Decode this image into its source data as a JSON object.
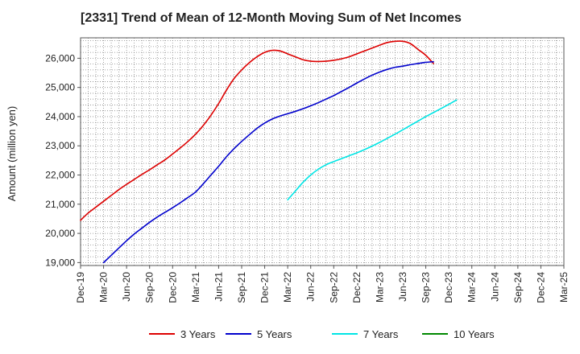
{
  "chart_data": {
    "type": "line",
    "title": "[2331]  Trend of Mean of 12-Month Moving Sum of Net Incomes",
    "xlabel": "",
    "ylabel": "Amount (million yen)",
    "x_ticks": [
      "Dec-19",
      "Mar-20",
      "Jun-20",
      "Sep-20",
      "Dec-20",
      "Mar-21",
      "Jun-21",
      "Sep-21",
      "Dec-21",
      "Mar-22",
      "Jun-22",
      "Sep-22",
      "Dec-22",
      "Mar-23",
      "Jun-23",
      "Sep-23",
      "Dec-23",
      "Mar-24",
      "Jun-24",
      "Sep-24",
      "Dec-24",
      "Mar-25"
    ],
    "y_ticks": [
      19000,
      20000,
      21000,
      22000,
      23000,
      24000,
      25000,
      26000
    ],
    "y_tick_labels": [
      "19,000",
      "20,000",
      "21,000",
      "22,000",
      "23,000",
      "24,000",
      "25,000",
      "26,000"
    ],
    "ylim": [
      18900,
      26700
    ],
    "grid": true,
    "legend_position": "bottom",
    "series": [
      {
        "name": "3 Years",
        "color": "#dd0000",
        "start": "Dec-19",
        "values": [
          20450,
          20700,
          20900,
          21100,
          21300,
          21500,
          21680,
          21850,
          22020,
          22180,
          22350,
          22520,
          22720,
          22930,
          23150,
          23400,
          23700,
          24050,
          24450,
          24900,
          25300,
          25600,
          25850,
          26050,
          26200,
          26270,
          26250,
          26150,
          26050,
          25950,
          25900,
          25890,
          25900,
          25930,
          25980,
          26050,
          26150,
          26250,
          26350,
          26450,
          26540,
          26580,
          26580,
          26500,
          26300,
          26100,
          25820
        ]
      },
      {
        "name": "5 Years",
        "color": "#0000cc",
        "start": "Mar-20",
        "values": [
          19000,
          19250,
          19500,
          19750,
          19980,
          20180,
          20380,
          20560,
          20720,
          20880,
          21050,
          21230,
          21420,
          21700,
          22000,
          22300,
          22620,
          22900,
          23150,
          23380,
          23600,
          23780,
          23920,
          24020,
          24100,
          24180,
          24270,
          24370,
          24480,
          24600,
          24720,
          24860,
          25000,
          25150,
          25290,
          25420,
          25530,
          25620,
          25690,
          25730,
          25780,
          25820,
          25860,
          25880
        ]
      },
      {
        "name": "7 Years",
        "color": "#00e5e5",
        "start": "Mar-22",
        "values": [
          21150,
          21450,
          21750,
          22000,
          22200,
          22350,
          22460,
          22560,
          22660,
          22760,
          22870,
          22990,
          23120,
          23260,
          23400,
          23550,
          23700,
          23850,
          24000,
          24140,
          24280,
          24420,
          24570
        ]
      },
      {
        "name": "10 Years",
        "color": "#008800",
        "start": "Mar-22",
        "values": []
      }
    ]
  }
}
